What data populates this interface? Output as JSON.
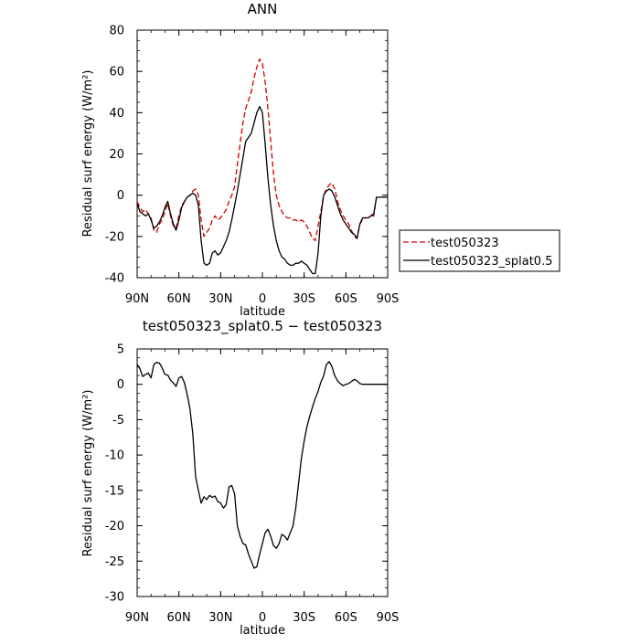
{
  "chart_data": [
    {
      "type": "line",
      "title": "ANN",
      "xlabel": "latitude",
      "ylabel": "Residual surf energy (W/m²)",
      "xlim": [
        90,
        -90
      ],
      "ylim": [
        -40,
        80
      ],
      "xticks": [
        90,
        60,
        30,
        0,
        -30,
        -60,
        -90
      ],
      "xtick_labels": [
        "90N",
        "60N",
        "30N",
        "0",
        "30S",
        "60S",
        "90S"
      ],
      "yticks": [
        -40,
        -20,
        0,
        20,
        40,
        60,
        80
      ],
      "ytick_labels": [
        "-40",
        "-20",
        "0",
        "20",
        "40",
        "60",
        "80"
      ],
      "legend_position": "right",
      "series": [
        {
          "name": "test050323",
          "color": "#d00000",
          "dash": "dashed",
          "x": [
            90,
            88,
            86,
            84,
            82,
            80,
            78,
            76,
            74,
            72,
            70,
            68,
            66,
            64,
            62,
            60,
            58,
            56,
            54,
            52,
            50,
            48,
            46,
            44,
            42,
            40,
            38,
            36,
            34,
            32,
            30,
            28,
            26,
            24,
            22,
            20,
            18,
            16,
            14,
            12,
            10,
            8,
            6,
            4,
            2,
            0,
            -2,
            -4,
            -6,
            -8,
            -10,
            -12,
            -14,
            -16,
            -18,
            -20,
            -22,
            -24,
            -26,
            -28,
            -30,
            -32,
            -34,
            -36,
            -38,
            -40,
            -42,
            -44,
            -46,
            -48,
            -50,
            -52,
            -54,
            -56,
            -58,
            -60,
            -62,
            -64,
            -66,
            -68,
            -70,
            -72,
            -74,
            -76,
            -78,
            -80,
            -82,
            -84,
            -86,
            -88,
            -90
          ],
          "values": [
            -3,
            -6,
            -8,
            -7,
            -9,
            -11,
            -17,
            -18,
            -14,
            -12,
            -8,
            -4,
            -10,
            -15,
            -16,
            -10,
            -5,
            -3,
            -1,
            0,
            2,
            3,
            0,
            -12,
            -20,
            -18,
            -16,
            -12,
            -10,
            -12,
            -11,
            -9,
            -7,
            -3,
            0,
            4,
            15,
            25,
            35,
            42,
            46,
            50,
            57,
            62,
            66,
            64,
            55,
            42,
            26,
            10,
            0,
            -5,
            -8,
            -10,
            -11,
            -11,
            -12,
            -12,
            -13,
            -12,
            -13,
            -15,
            -18,
            -21,
            -22,
            -15,
            -8,
            0,
            3,
            5,
            6,
            3,
            -3,
            -7,
            -10,
            -12,
            -14,
            -17,
            -20,
            -21,
            -14,
            -12,
            -11,
            -11,
            -10,
            -10,
            -1,
            -1,
            -1,
            -1,
            -1
          ]
        },
        {
          "name": "test050323_splat0.5",
          "color": "#000000",
          "dash": "solid",
          "x": [
            90,
            88,
            86,
            84,
            82,
            80,
            78,
            76,
            74,
            72,
            70,
            68,
            66,
            64,
            62,
            60,
            58,
            56,
            54,
            52,
            50,
            48,
            46,
            44,
            42,
            40,
            38,
            36,
            34,
            32,
            30,
            28,
            26,
            24,
            22,
            20,
            18,
            16,
            14,
            12,
            10,
            8,
            6,
            4,
            2,
            0,
            -2,
            -4,
            -6,
            -8,
            -10,
            -12,
            -14,
            -16,
            -18,
            -20,
            -22,
            -24,
            -26,
            -28,
            -30,
            -32,
            -34,
            -36,
            -38,
            -40,
            -42,
            -44,
            -46,
            -48,
            -50,
            -52,
            -54,
            -56,
            -58,
            -60,
            -62,
            -64,
            -66,
            -68,
            -70,
            -72,
            -74,
            -76,
            -78,
            -80,
            -82,
            -84,
            -86,
            -88,
            -90
          ],
          "values": [
            -4,
            -8,
            -9,
            -10,
            -9,
            -12,
            -16,
            -15,
            -13,
            -10,
            -6,
            -3,
            -9,
            -14,
            -17,
            -12,
            -6,
            -3,
            -1,
            0,
            1,
            0,
            -5,
            -22,
            -33,
            -34,
            -33,
            -28,
            -27,
            -29,
            -28,
            -25,
            -22,
            -18,
            -12,
            -5,
            2,
            10,
            18,
            26,
            28,
            30,
            35,
            40,
            43,
            40,
            25,
            8,
            -5,
            -15,
            -22,
            -27,
            -30,
            -31,
            -33,
            -34,
            -34,
            -33,
            -33,
            -32,
            -33,
            -34,
            -36,
            -38,
            -38,
            -28,
            -10,
            0,
            2,
            3,
            2,
            -1,
            -5,
            -9,
            -12,
            -14,
            -16,
            -18,
            -19,
            -21,
            -14,
            -11,
            -11,
            -11,
            -10,
            -9,
            -1,
            -1,
            -1,
            -1,
            -1
          ]
        }
      ]
    },
    {
      "type": "line",
      "title": "test050323_splat0.5 − test050323",
      "xlabel": "latitude",
      "ylabel": "Residual surf energy (W/m²)",
      "xlim": [
        90,
        -90
      ],
      "ylim": [
        -30,
        5
      ],
      "xticks": [
        90,
        60,
        30,
        0,
        -30,
        -60,
        -90
      ],
      "xtick_labels": [
        "90N",
        "60N",
        "30N",
        "0",
        "30S",
        "60S",
        "90S"
      ],
      "yticks": [
        -30,
        -25,
        -20,
        -15,
        -10,
        -5,
        0,
        5
      ],
      "ytick_labels": [
        "-30",
        "-25",
        "-20",
        "-15",
        "-10",
        "-5",
        "0",
        "5"
      ],
      "series": [
        {
          "color": "#000000",
          "dash": "solid",
          "x": [
            90,
            88,
            86,
            84,
            82,
            80,
            78,
            76,
            74,
            72,
            70,
            68,
            66,
            64,
            62,
            60,
            58,
            56,
            54,
            52,
            50,
            48,
            46,
            44,
            42,
            40,
            38,
            36,
            34,
            32,
            30,
            28,
            26,
            24,
            22,
            20,
            18,
            16,
            14,
            12,
            10,
            8,
            6,
            4,
            2,
            0,
            -2,
            -4,
            -6,
            -8,
            -10,
            -12,
            -14,
            -16,
            -18,
            -20,
            -22,
            -24,
            -26,
            -28,
            -30,
            -32,
            -34,
            -36,
            -38,
            -40,
            -42,
            -44,
            -46,
            -48,
            -50,
            -52,
            -54,
            -56,
            -58,
            -60,
            -62,
            -64,
            -66,
            -68,
            -70,
            -72,
            -74,
            -76,
            -78,
            -80,
            -82,
            -84,
            -86,
            -88,
            -90
          ],
          "values": [
            2.8,
            2.2,
            1.1,
            1.4,
            1.6,
            0.9,
            2.8,
            3.1,
            3.0,
            2.3,
            1.4,
            1.3,
            0.6,
            0.2,
            -0.3,
            0.9,
            1.1,
            0.2,
            -1.5,
            -3.5,
            -7.0,
            -13.0,
            -15.0,
            -16.8,
            -15.9,
            -16.3,
            -15.7,
            -16.0,
            -15.8,
            -16.6,
            -16.8,
            -17.5,
            -17.0,
            -14.5,
            -14.3,
            -15.5,
            -20.0,
            -21.5,
            -22.5,
            -22.7,
            -24.0,
            -25.0,
            -26.0,
            -25.8,
            -24.0,
            -22.5,
            -21.0,
            -20.5,
            -21.5,
            -22.8,
            -23.2,
            -22.5,
            -21.2,
            -21.5,
            -22.0,
            -21.0,
            -20.0,
            -17.5,
            -14.0,
            -10.5,
            -8.0,
            -6.0,
            -4.5,
            -3.2,
            -2.0,
            -1.0,
            0.3,
            1.2,
            2.8,
            3.2,
            2.5,
            1.2,
            0.5,
            0.1,
            -0.2,
            0.0,
            0.1,
            0.4,
            0.7,
            0.5,
            0.1,
            0.0,
            0.0,
            0.0,
            0.0,
            0.0,
            0.0,
            0.0,
            0.0,
            0.0,
            0.0
          ]
        }
      ]
    }
  ]
}
